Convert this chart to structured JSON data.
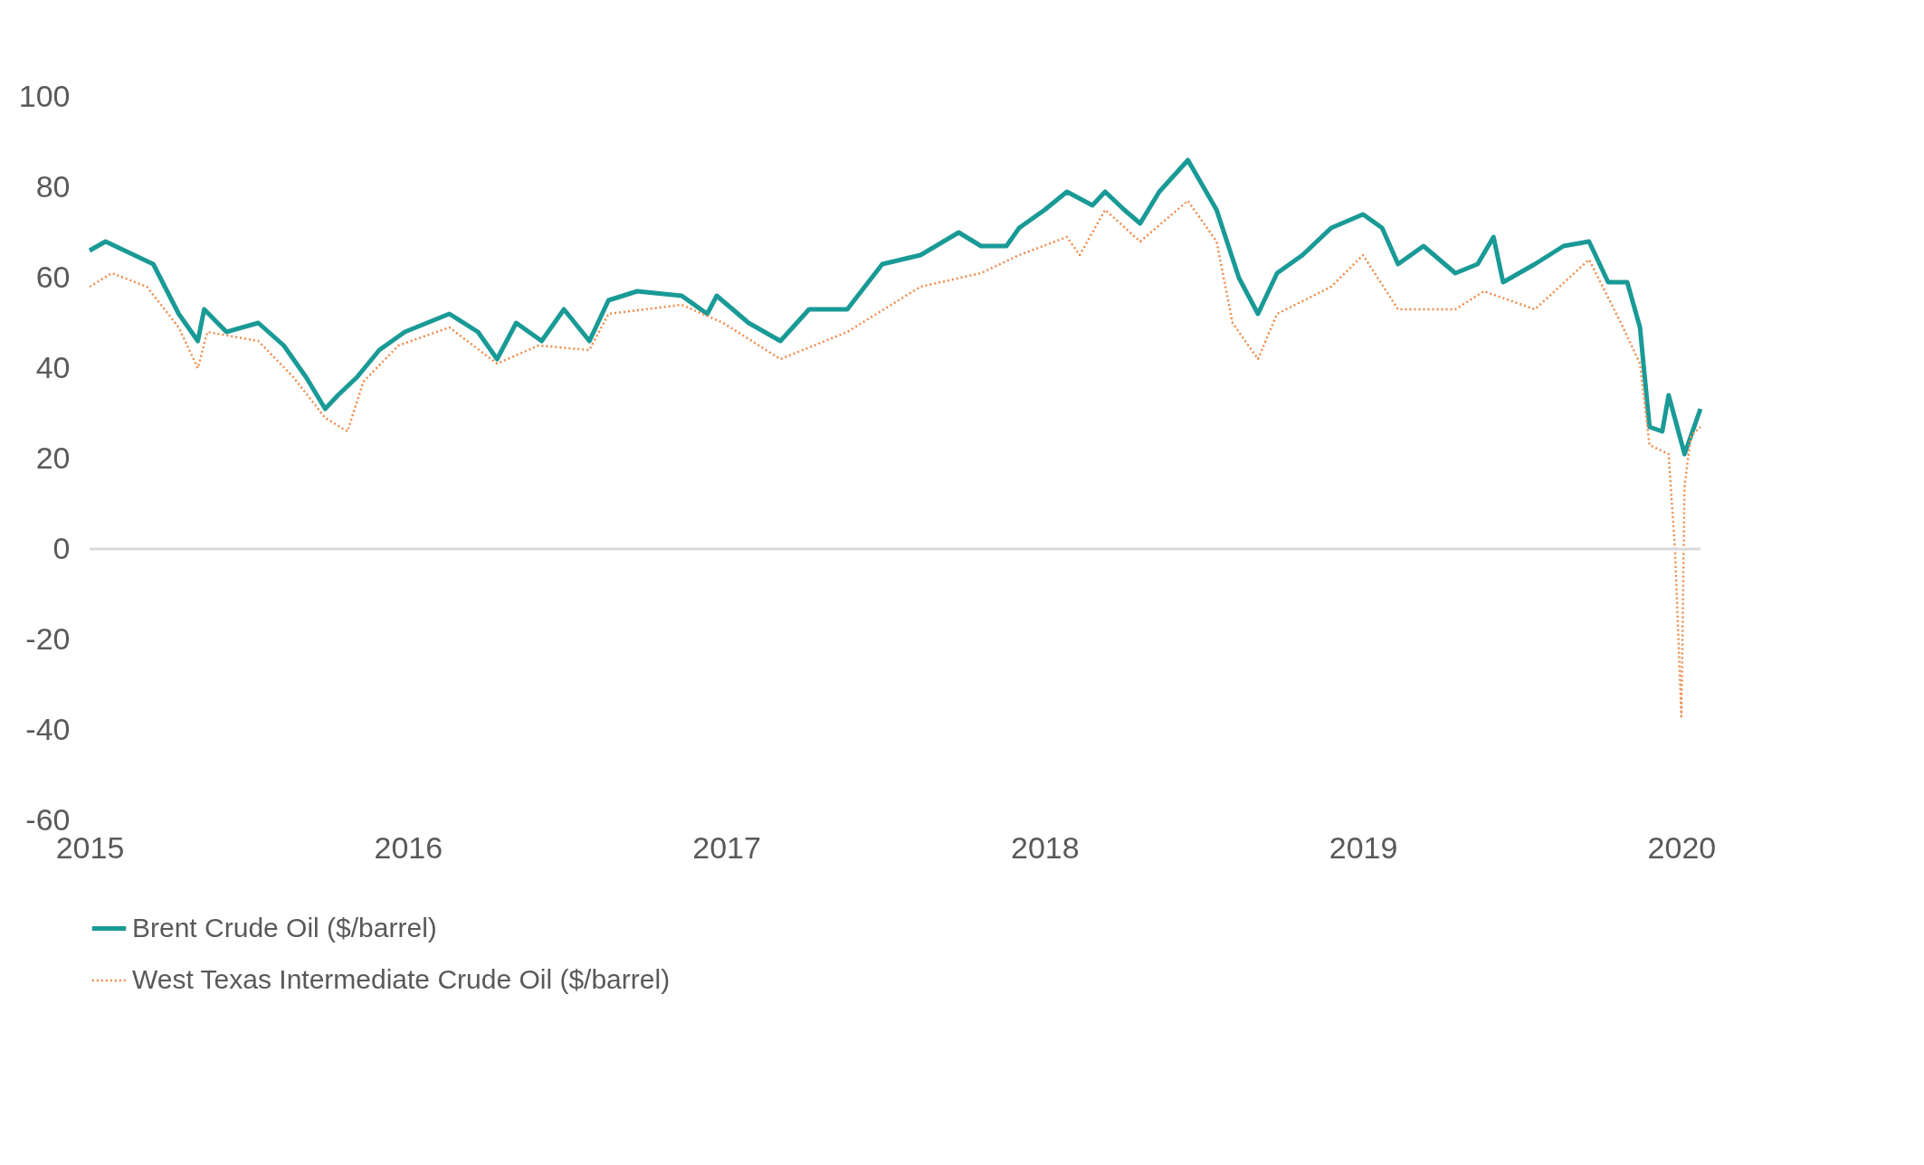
{
  "chart_data": {
    "type": "line",
    "xlim": [
      2015.3,
      2020.36
    ],
    "xticks": [
      {
        "value": 2015.3,
        "label": "2015"
      },
      {
        "value": 2016.3,
        "label": "2016"
      },
      {
        "value": 2017.3,
        "label": "2017"
      },
      {
        "value": 2018.3,
        "label": "2018"
      },
      {
        "value": 2019.3,
        "label": "2019"
      },
      {
        "value": 2020.3,
        "label": "2020"
      }
    ],
    "ylim": [
      -60,
      100
    ],
    "yticks": [
      -60,
      -40,
      -20,
      0,
      20,
      40,
      60,
      80,
      100
    ],
    "grid": false,
    "legend": "bottom",
    "ref_lines": [
      {
        "axis": "y",
        "value": 0,
        "color": "#d9d9d9"
      }
    ],
    "series": [
      {
        "name": "Brent Crude Oil ($/barrel)",
        "color": "#1a9a96",
        "line_style": "solid",
        "x": [
          2015.3,
          2015.35,
          2015.44,
          2015.5,
          2015.58,
          2015.64,
          2015.66,
          2015.73,
          2015.83,
          2015.91,
          2015.98,
          2016.04,
          2016.08,
          2016.14,
          2016.21,
          2016.29,
          2016.43,
          2016.52,
          2016.58,
          2016.64,
          2016.72,
          2016.79,
          2016.87,
          2016.93,
          2017.02,
          2017.16,
          2017.24,
          2017.27,
          2017.37,
          2017.47,
          2017.56,
          2017.68,
          2017.79,
          2017.91,
          2018.03,
          2018.1,
          2018.18,
          2018.22,
          2018.3,
          2018.37,
          2018.45,
          2018.49,
          2018.55,
          2018.6,
          2018.66,
          2018.75,
          2018.84,
          2018.91,
          2018.97,
          2019.03,
          2019.11,
          2019.2,
          2019.3,
          2019.36,
          2019.41,
          2019.49,
          2019.59,
          2019.66,
          2019.71,
          2019.74,
          2019.84,
          2019.93,
          2020.01,
          2020.07,
          2020.13,
          2020.17,
          2020.2,
          2020.24,
          2020.26,
          2020.31,
          2020.34,
          2020.36
        ],
        "values": [
          66,
          68,
          65,
          63,
          52,
          46,
          53,
          48,
          50,
          45,
          38,
          31,
          34,
          38,
          44,
          48,
          52,
          48,
          42,
          50,
          46,
          53,
          46,
          55,
          57,
          56,
          52,
          56,
          50,
          46,
          53,
          53,
          63,
          65,
          70,
          67,
          67,
          71,
          75,
          79,
          76,
          79,
          75,
          72,
          79,
          86,
          75,
          60,
          52,
          61,
          65,
          71,
          74,
          71,
          63,
          67,
          61,
          63,
          69,
          59,
          63,
          67,
          68,
          59,
          59,
          49,
          27,
          26,
          34,
          21,
          27,
          31
        ]
      },
      {
        "name": "West Texas Intermediate Crude Oil ($/barrel)",
        "color": "#f08a4b",
        "line_style": "dotted",
        "x": [
          2015.3,
          2015.37,
          2015.48,
          2015.58,
          2015.64,
          2015.67,
          2015.83,
          2015.94,
          2016.04,
          2016.11,
          2016.16,
          2016.27,
          2016.43,
          2016.58,
          2016.71,
          2016.87,
          2016.93,
          2017.16,
          2017.29,
          2017.47,
          2017.68,
          2017.91,
          2018.1,
          2018.22,
          2018.37,
          2018.41,
          2018.49,
          2018.6,
          2018.75,
          2018.84,
          2018.89,
          2018.97,
          2019.03,
          2019.2,
          2019.3,
          2019.41,
          2019.59,
          2019.68,
          2019.84,
          2020.01,
          2020.11,
          2020.17,
          2020.2,
          2020.26,
          2020.28,
          2020.3,
          2020.31,
          2020.33,
          2020.36
        ],
        "values": [
          58,
          61,
          58,
          49,
          40,
          48,
          46,
          38,
          29,
          26,
          37,
          45,
          49,
          41,
          45,
          44,
          52,
          54,
          50,
          42,
          48,
          58,
          61,
          65,
          69,
          65,
          75,
          68,
          77,
          68,
          50,
          42,
          52,
          58,
          65,
          53,
          53,
          57,
          53,
          64,
          50,
          41,
          23,
          21,
          0,
          -37,
          14,
          25,
          27
        ]
      }
    ]
  }
}
